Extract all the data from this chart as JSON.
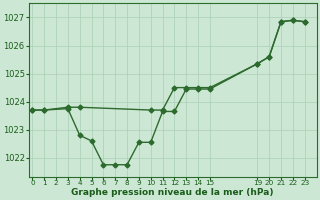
{
  "line1_x": [
    0,
    1,
    3,
    4,
    10,
    11,
    12,
    13,
    14,
    15,
    19,
    20,
    21,
    22,
    23
  ],
  "line1_y": [
    1023.7,
    1023.7,
    1023.8,
    1023.8,
    1023.7,
    1023.7,
    1024.5,
    1024.5,
    1024.5,
    1024.5,
    1025.35,
    1025.6,
    1026.85,
    1026.9,
    1026.85
  ],
  "line2_x": [
    0,
    1,
    3,
    4,
    5,
    6,
    7,
    8,
    9,
    10,
    11,
    12,
    13,
    14,
    15,
    19,
    20,
    21,
    22,
    23
  ],
  "line2_y": [
    1023.7,
    1023.7,
    1023.75,
    1022.8,
    1022.6,
    1021.75,
    1021.75,
    1021.75,
    1022.55,
    1022.55,
    1023.65,
    1023.65,
    1024.45,
    1024.45,
    1024.45,
    1025.35,
    1025.6,
    1026.85,
    1026.9,
    1026.85
  ],
  "xticks": [
    0,
    1,
    2,
    3,
    4,
    5,
    6,
    7,
    8,
    9,
    10,
    11,
    12,
    13,
    14,
    15,
    19,
    20,
    21,
    22,
    23
  ],
  "xtick_labels": [
    "0",
    "1",
    "2",
    "3",
    "4",
    "5",
    "6",
    "7",
    "8",
    "9",
    "10",
    "11",
    "12",
    "13",
    "14",
    "15",
    "19",
    "20",
    "21",
    "22",
    "23"
  ],
  "yticks": [
    1022,
    1023,
    1024,
    1025,
    1026,
    1027
  ],
  "ylim": [
    1021.3,
    1027.5
  ],
  "xlim": [
    -0.3,
    24.0
  ],
  "line_color": "#2d6a2d",
  "marker": "D",
  "marker_size": 2.5,
  "bg_color": "#cce8d4",
  "grid_color": "#aacfb5",
  "xlabel": "Graphe pression niveau de la mer (hPa)",
  "xlabel_color": "#1a5c1a",
  "tick_color": "#1a5c1a",
  "axis_color": "#2d6a2d",
  "linewidth": 1.0,
  "figsize": [
    3.2,
    2.0
  ],
  "dpi": 100
}
